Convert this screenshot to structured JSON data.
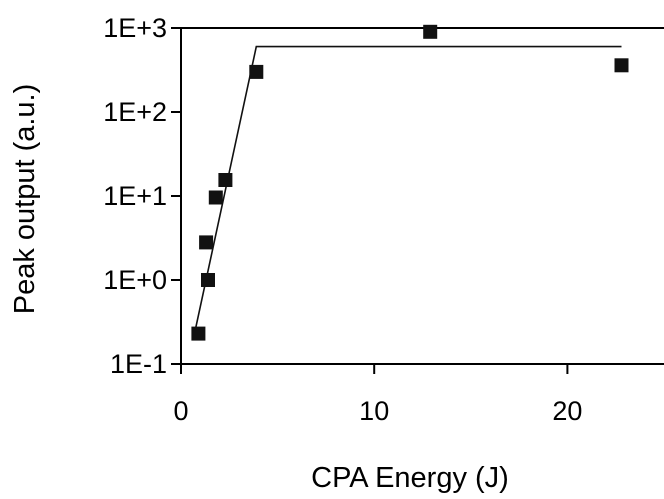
{
  "chart_data": {
    "type": "scatter",
    "title": "",
    "xlabel": "CPA Energy (J)",
    "ylabel": "Peak output (a.u.)",
    "xlim": [
      0,
      25
    ],
    "ylim": [
      0.1,
      1000
    ],
    "yscale": "log",
    "x_ticks": [
      0,
      10,
      20
    ],
    "x_tick_labels": [
      "0",
      "10",
      "20"
    ],
    "y_ticks": [
      0.1,
      1,
      10,
      100,
      1000
    ],
    "y_tick_labels": [
      "1E-1",
      "1E+0",
      "1E+1",
      "1E+2",
      "1E+3"
    ],
    "grid": false,
    "legend": "none",
    "series": [
      {
        "type": "scatter",
        "marker": "square",
        "color": "#111111",
        "x": [
          0.9,
          1.3,
          1.4,
          1.8,
          2.3,
          3.9,
          12.9,
          22.8
        ],
        "y": [
          0.23,
          2.8,
          1.0,
          9.6,
          15.5,
          300,
          900,
          360
        ]
      },
      {
        "type": "line",
        "color": "#111111",
        "x": [
          0.7,
          3.9,
          22.8
        ],
        "y": [
          0.23,
          600,
          600
        ]
      }
    ]
  }
}
